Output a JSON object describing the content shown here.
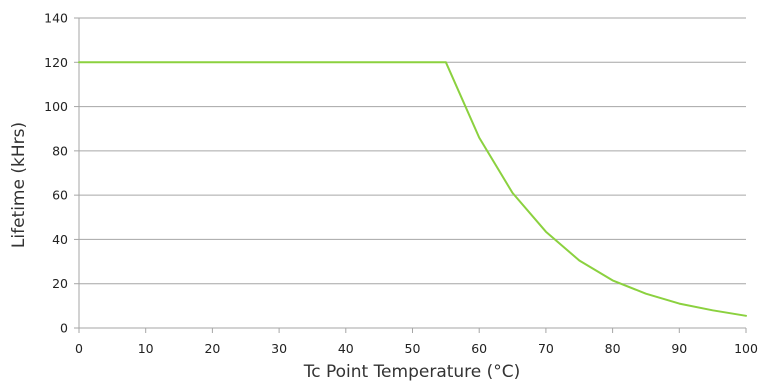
{
  "chart_data": {
    "type": "line",
    "title": "",
    "xlabel": "Tc Point Temperature (°C)",
    "ylabel": "Lifetime (kHrs)",
    "xlim": [
      0,
      100
    ],
    "ylim": [
      0,
      140
    ],
    "x_ticks": [
      0,
      10,
      20,
      30,
      40,
      50,
      60,
      70,
      80,
      90,
      100
    ],
    "y_ticks": [
      0,
      20,
      40,
      60,
      80,
      100,
      120,
      140
    ],
    "grid": "horizontal",
    "legend": "none",
    "series": [
      {
        "color": "#8bd13f",
        "points": [
          [
            0,
            120
          ],
          [
            55,
            120
          ],
          [
            60,
            86
          ],
          [
            65,
            61
          ],
          [
            70,
            43.5
          ],
          [
            75,
            30.5
          ],
          [
            80,
            21.5
          ],
          [
            85,
            15.5
          ],
          [
            90,
            11
          ],
          [
            95,
            8
          ],
          [
            100,
            5.5
          ]
        ]
      }
    ]
  }
}
